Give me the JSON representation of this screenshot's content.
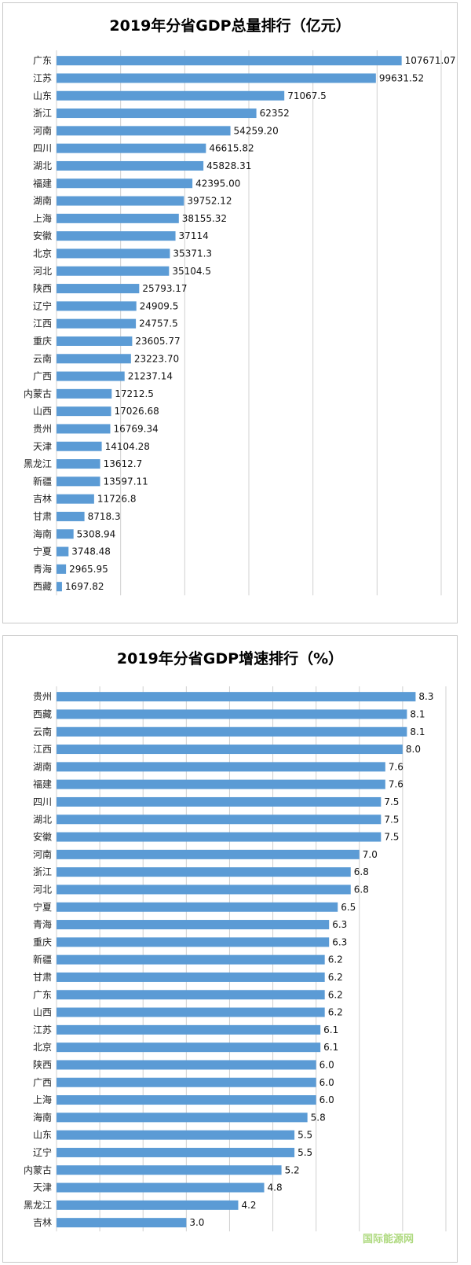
{
  "chart_data": [
    {
      "type": "bar",
      "orientation": "horizontal",
      "title": "2019年分省GDP总量排行（亿元）",
      "xlim": [
        0,
        120000
      ],
      "grid": true,
      "categories": [
        "广东",
        "江苏",
        "山东",
        "浙江",
        "河南",
        "四川",
        "湖北",
        "福建",
        "湖南",
        "上海",
        "安徽",
        "北京",
        "河北",
        "陕西",
        "辽宁",
        "江西",
        "重庆",
        "云南",
        "广西",
        "内蒙古",
        "山西",
        "贵州",
        "天津",
        "黑龙江",
        "新疆",
        "吉林",
        "甘肃",
        "海南",
        "宁夏",
        "青海",
        "西藏"
      ],
      "values": [
        107671.07,
        99631.52,
        71067.5,
        62352,
        54259.2,
        46615.82,
        45828.31,
        42395.0,
        39752.12,
        38155.32,
        37114,
        35371.3,
        35104.5,
        25793.17,
        24909.5,
        24757.5,
        23605.77,
        23223.7,
        21237.14,
        17212.5,
        17026.68,
        16769.34,
        14104.28,
        13612.7,
        13597.11,
        11726.8,
        8718.3,
        5308.94,
        3748.48,
        2965.95,
        1697.82
      ],
      "labels": [
        "107671.07",
        "99631.52",
        "71067.5",
        "62352",
        "54259.20",
        "46615.82",
        "45828.31",
        "42395.00",
        "39752.12",
        "38155.32",
        "37114",
        "35371.3",
        "35104.5",
        "25793.17",
        "24909.5",
        "24757.5",
        "23605.77",
        "23223.70",
        "21237.14",
        "17212.5",
        "17026.68",
        "16769.34",
        "14104.28",
        "13612.7",
        "13597.11",
        "11726.8",
        "8718.3",
        "5308.94",
        "3748.48",
        "2965.95",
        "1697.82"
      ]
    },
    {
      "type": "bar",
      "orientation": "horizontal",
      "title": "2019年分省GDP增速排行（%）",
      "xlim": [
        0,
        9
      ],
      "grid": true,
      "categories": [
        "贵州",
        "西藏",
        "云南",
        "江西",
        "湖南",
        "福建",
        "四川",
        "湖北",
        "安徽",
        "河南",
        "浙江",
        "河北",
        "宁夏",
        "青海",
        "重庆",
        "新疆",
        "甘肃",
        "广东",
        "山西",
        "江苏",
        "北京",
        "陕西",
        "广西",
        "上海",
        "海南",
        "山东",
        "辽宁",
        "内蒙古",
        "天津",
        "黑龙江",
        "吉林"
      ],
      "values": [
        8.3,
        8.1,
        8.1,
        8.0,
        7.6,
        7.6,
        7.5,
        7.5,
        7.5,
        7.0,
        6.8,
        6.8,
        6.5,
        6.3,
        6.3,
        6.2,
        6.2,
        6.2,
        6.2,
        6.1,
        6.1,
        6.0,
        6.0,
        6.0,
        5.8,
        5.5,
        5.5,
        5.2,
        4.8,
        4.2,
        3.0
      ],
      "labels": [
        "8.3",
        "8.1",
        "8.1",
        "8.0",
        "7.6",
        "7.6",
        "7.5",
        "7.5",
        "7.5",
        "7.0",
        "6.8",
        "6.8",
        "6.5",
        "6.3",
        "6.3",
        "6.2",
        "6.2",
        "6.2",
        "6.2",
        "6.1",
        "6.1",
        "6.0",
        "6.0",
        "6.0",
        "5.8",
        "5.5",
        "5.5",
        "5.2",
        "4.8",
        "4.2",
        "3.0"
      ]
    }
  ],
  "watermark": "国际能源网",
  "colors": {
    "bar": "#5b9bd5",
    "grid": "#d0d0d0"
  }
}
